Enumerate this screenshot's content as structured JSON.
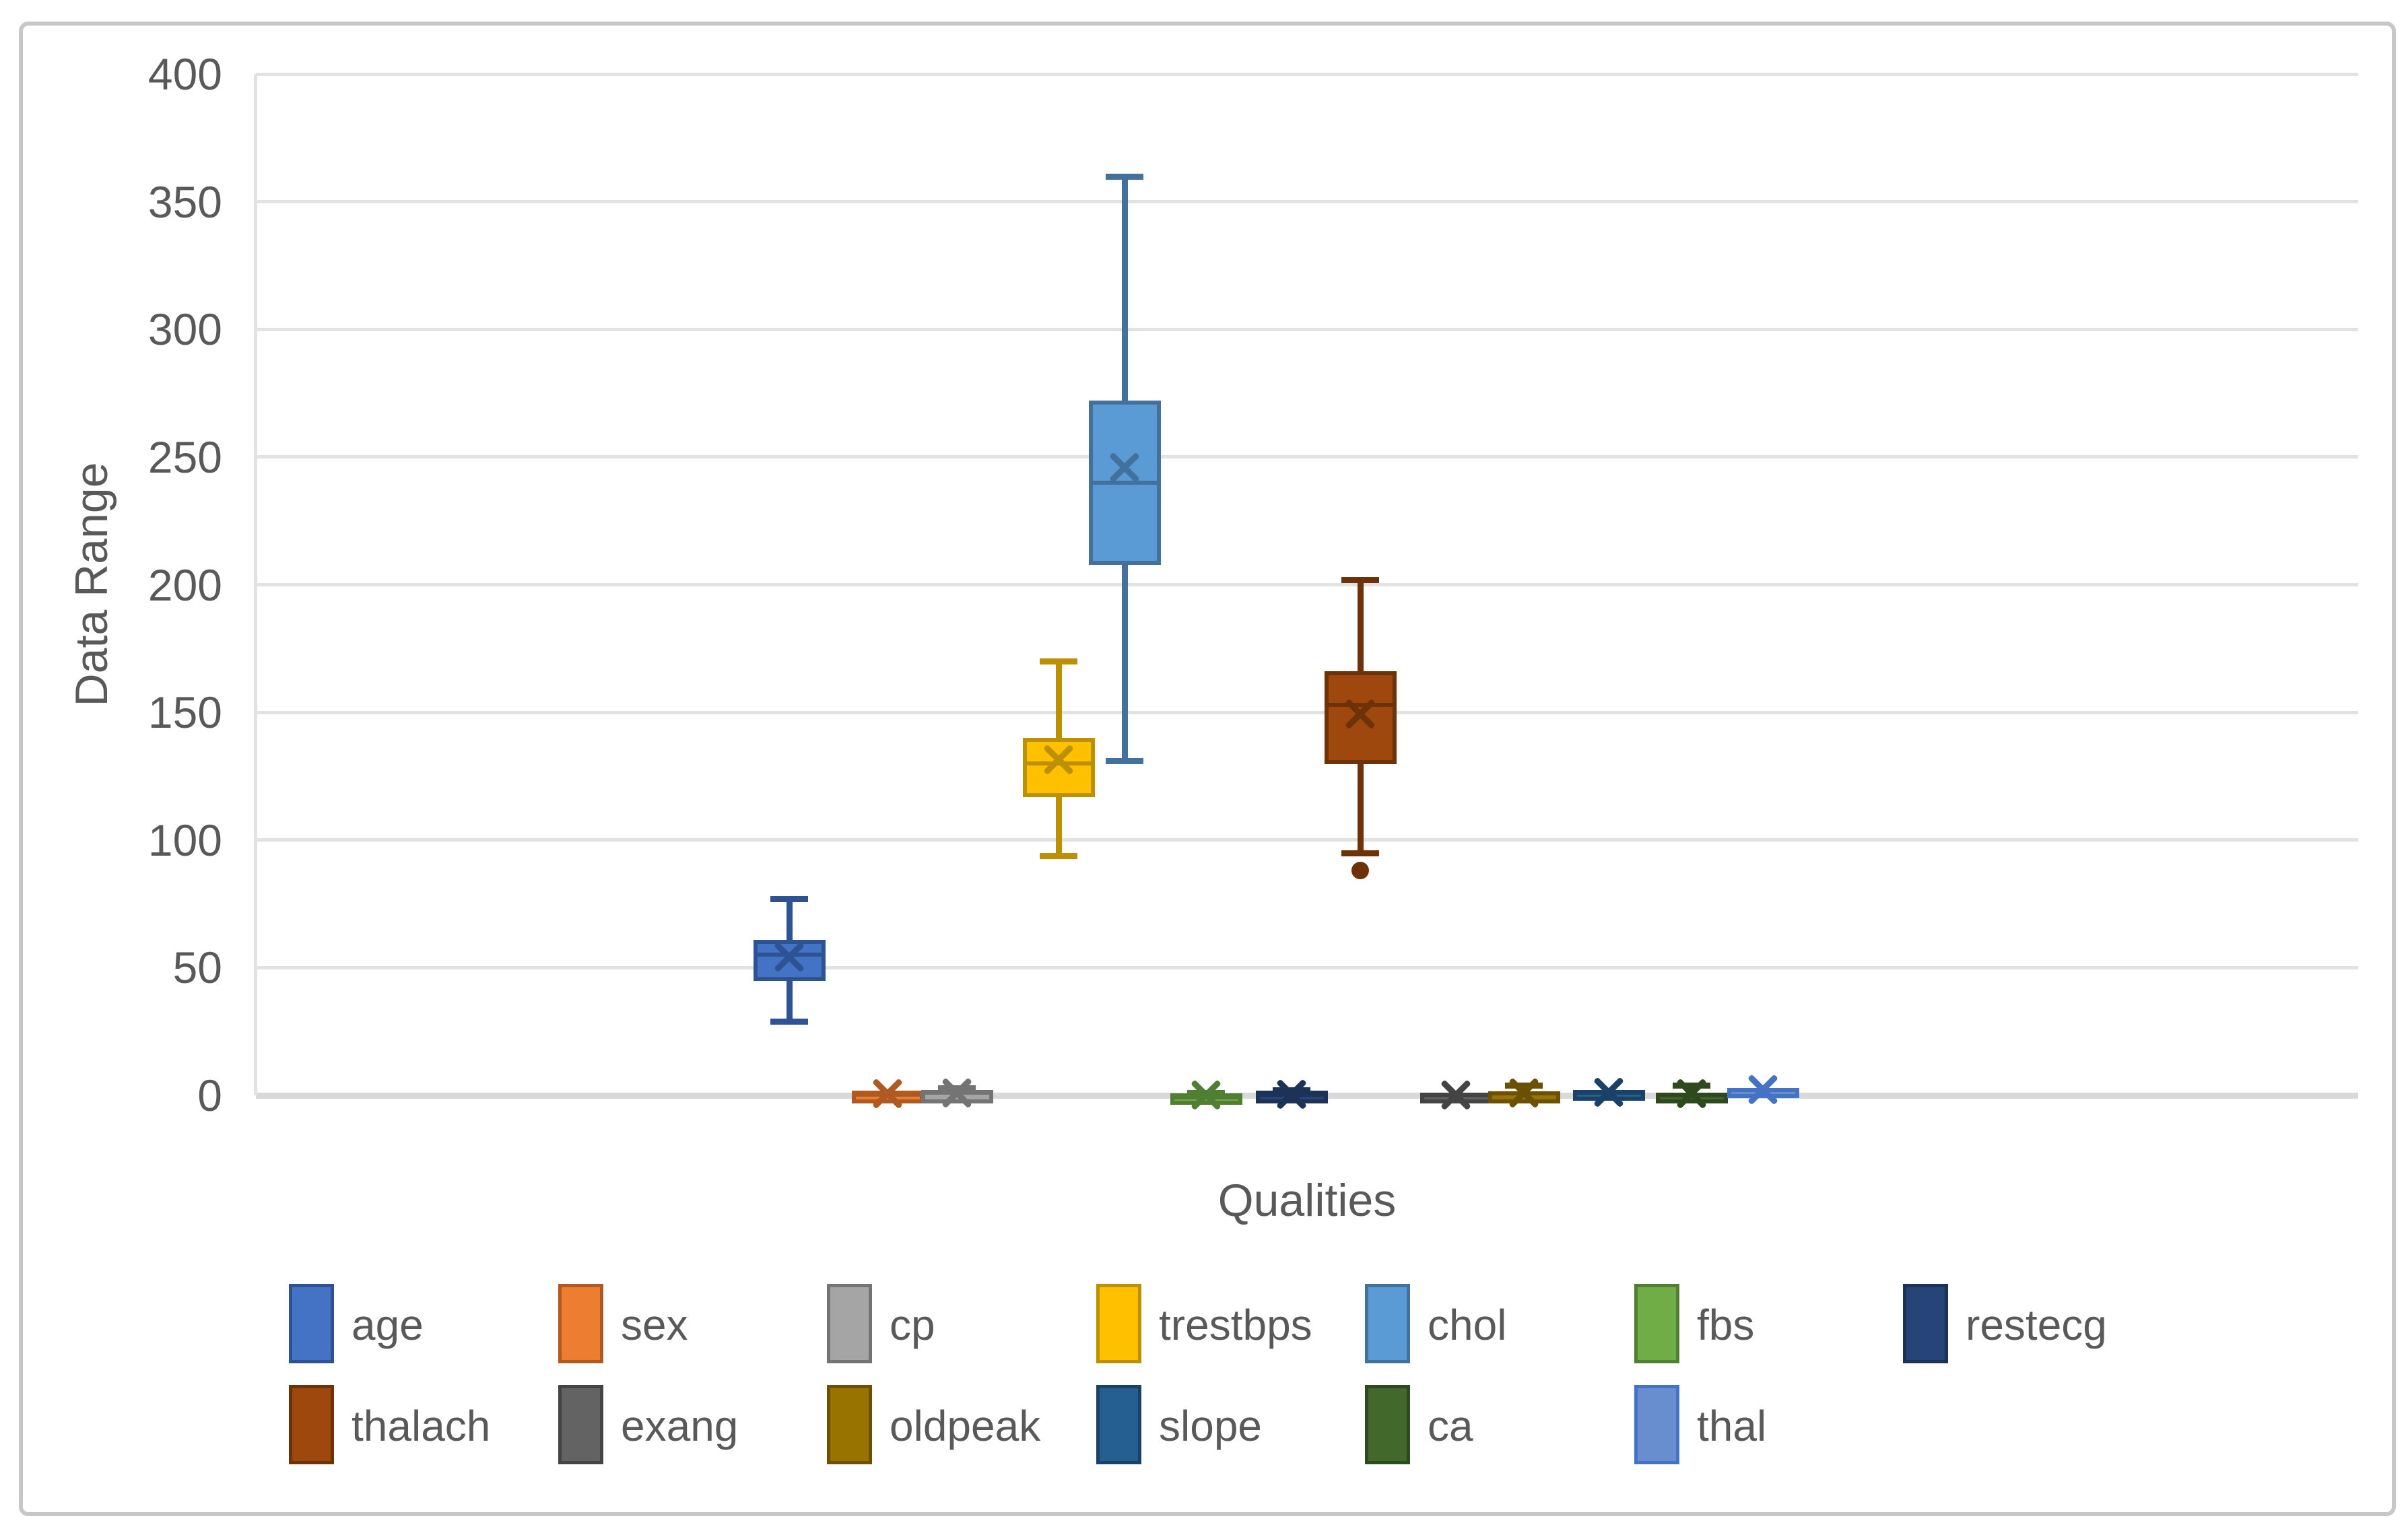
{
  "chart_data": {
    "type": "box",
    "title": "",
    "xlabel": "Qualities",
    "ylabel": "Data Range",
    "ylim": [
      0,
      400
    ],
    "y_step": 50,
    "y_tick_labels": [
      "0",
      "50",
      "100",
      "150",
      "200",
      "250",
      "300",
      "350",
      "400"
    ],
    "grid": true,
    "legend_position": "bottom",
    "legend_rows": [
      [
        "age",
        "sex",
        "cp",
        "trestbps",
        "chol",
        "fbs",
        "restecg"
      ],
      [
        "thalach",
        "exang",
        "oldpeak",
        "slope",
        "ca",
        "thal"
      ]
    ],
    "series": [
      {
        "name": "age",
        "fill": "#4472C4",
        "line": "#2E5395",
        "x_center": 1172,
        "whisker_low": 29,
        "q1": 48,
        "median": 55,
        "q3": 61,
        "whisker_high": 77,
        "mean": 54.4,
        "outliers": []
      },
      {
        "name": "sex",
        "fill": "#ED7D31",
        "line": "#AE5A21",
        "x_center": 1318,
        "whisker_low": 0,
        "q1": 0,
        "median": 1,
        "q3": 1,
        "whisker_high": 1,
        "mean": 0.68,
        "outliers": []
      },
      {
        "name": "cp",
        "fill": "#A5A5A5",
        "line": "#747474",
        "x_center": 1421,
        "whisker_low": 0,
        "q1": 0,
        "median": 1,
        "q3": 2,
        "whisker_high": 3,
        "mean": 0.97,
        "outliers": []
      },
      {
        "name": "trestbps",
        "fill": "#FFC000",
        "line": "#BD9000",
        "x_center": 1572,
        "whisker_low": 94,
        "q1": 120,
        "median": 130,
        "q3": 140,
        "whisker_high": 170,
        "mean": 131.6,
        "outliers": []
      },
      {
        "name": "chol",
        "fill": "#5B9BD5",
        "line": "#41719C",
        "x_center": 1670,
        "whisker_low": 131,
        "q1": 211,
        "median": 240,
        "q3": 272,
        "whisker_high": 360,
        "mean": 246,
        "outliers": []
      },
      {
        "name": "fbs",
        "fill": "#70AD47",
        "line": "#507E32",
        "x_center": 1791,
        "whisker_low": 0,
        "q1": 0,
        "median": 0,
        "q3": 0,
        "whisker_high": 1,
        "mean": 0.15,
        "outliers": []
      },
      {
        "name": "restecg",
        "fill": "#264478",
        "line": "#1C3357",
        "x_center": 1918,
        "whisker_low": 0,
        "q1": 0,
        "median": 1,
        "q3": 1,
        "whisker_high": 2,
        "mean": 0.53,
        "outliers": []
      },
      {
        "name": "thalach",
        "fill": "#9E480E",
        "line": "#6E3209",
        "x_center": 2020,
        "whisker_low": 95,
        "q1": 133,
        "median": 153,
        "q3": 166,
        "whisker_high": 202,
        "mean": 149.6,
        "outliers": [
          88
        ]
      },
      {
        "name": "exang",
        "fill": "#636363",
        "line": "#444444",
        "x_center": 2162,
        "whisker_low": 0,
        "q1": 0,
        "median": 0,
        "q3": 1,
        "whisker_high": 1,
        "mean": 0.33,
        "outliers": []
      },
      {
        "name": "oldpeak",
        "fill": "#997300",
        "line": "#6B5000",
        "x_center": 2263,
        "whisker_low": 0,
        "q1": 0,
        "median": 0.8,
        "q3": 1.6,
        "whisker_high": 4,
        "mean": 1.04,
        "outliers": []
      },
      {
        "name": "slope",
        "fill": "#255E91",
        "line": "#1A4266",
        "x_center": 2389,
        "whisker_low": 0,
        "q1": 1,
        "median": 1,
        "q3": 2,
        "whisker_high": 2,
        "mean": 1.4,
        "outliers": []
      },
      {
        "name": "ca",
        "fill": "#43682B",
        "line": "#2F491E",
        "x_center": 2512,
        "whisker_low": 0,
        "q1": 0,
        "median": 0,
        "q3": 1,
        "whisker_high": 4,
        "mean": 0.73,
        "outliers": []
      },
      {
        "name": "thal",
        "fill": "#698ED0",
        "line": "#4472C4",
        "x_center": 2618,
        "whisker_low": 2,
        "q1": 2,
        "median": 2,
        "q3": 3,
        "whisker_high": 3,
        "mean": 2.31,
        "outliers": []
      }
    ]
  }
}
